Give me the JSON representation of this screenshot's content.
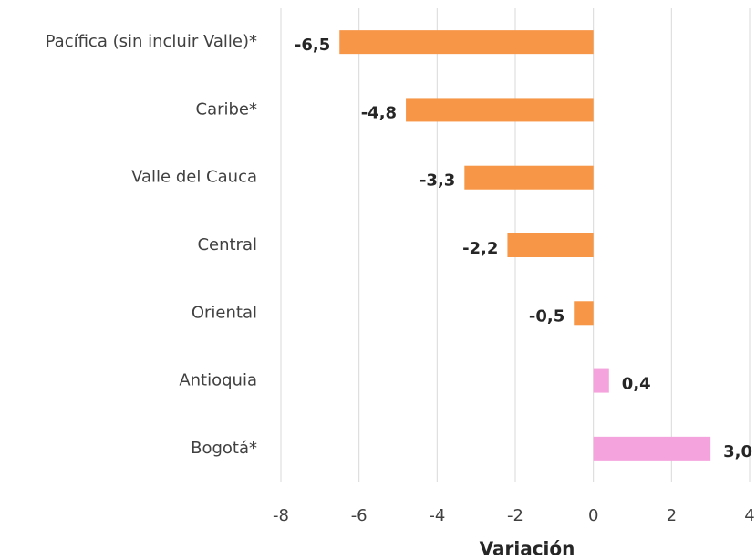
{
  "chart_data": {
    "type": "bar",
    "orientation": "horizontal",
    "categories": [
      "Pacífica (sin incluir Valle)*",
      "Caribe*",
      "Valle del Cauca",
      "Central",
      "Oriental",
      "Antioquia",
      "Bogotá*"
    ],
    "values": [
      -6.5,
      -4.8,
      -3.3,
      -2.2,
      -0.5,
      0.4,
      3.0
    ],
    "value_labels": [
      "-6,5",
      "-4,8",
      "-3,3",
      "-2,2",
      "-0,5",
      "0,4",
      "3,0"
    ],
    "colors": [
      "#f79646",
      "#f79646",
      "#f79646",
      "#f79646",
      "#f79646",
      "#f5a3dc",
      "#f5a3dc"
    ],
    "x_label": "Variación",
    "xlim": [
      -8,
      4
    ],
    "xticks": [
      -8,
      -6,
      -4,
      -2,
      0,
      2,
      4
    ],
    "grid": true
  }
}
